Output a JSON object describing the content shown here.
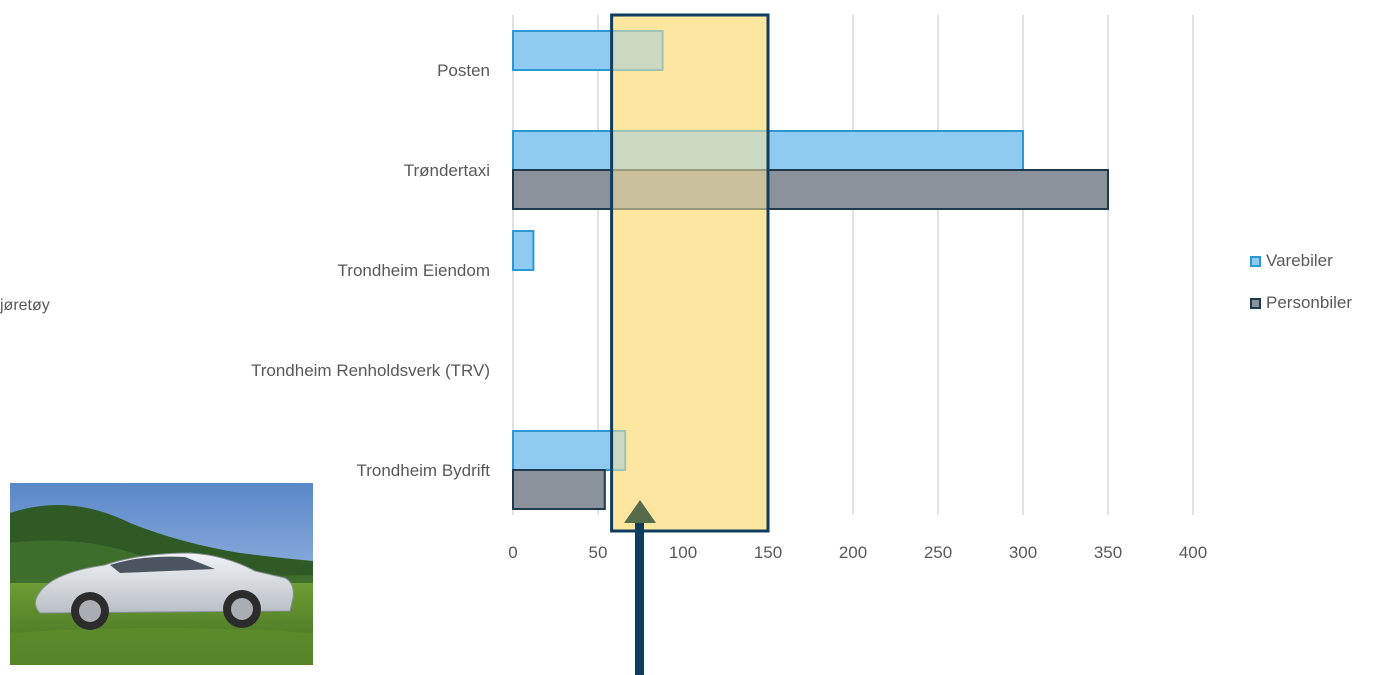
{
  "side_label": "jøretøy",
  "legend": {
    "items": [
      {
        "label": "Varebiler",
        "fill": "#8fcaf0",
        "stroke": "#2b97d3"
      },
      {
        "label": "Personbiler",
        "fill": "#8c929c",
        "stroke": "#1f3a4d"
      }
    ]
  },
  "chart_data": {
    "type": "bar",
    "orientation": "horizontal",
    "categories": [
      "Posten",
      "Trøndertaxi",
      "Trondheim Eiendom",
      "Trondheim Renholdsverk (TRV)",
      "Trondheim Bydrift"
    ],
    "series": [
      {
        "name": "Varebiler",
        "values": [
          88,
          300,
          12,
          0,
          66
        ],
        "color": "#8fcaf0",
        "stroke": "#2b97d3"
      },
      {
        "name": "Personbiler",
        "values": [
          0,
          350,
          0,
          0,
          54
        ],
        "color": "#8c929c",
        "stroke": "#1f3a4d"
      }
    ],
    "xlim": [
      0,
      400
    ],
    "xticks": [
      0,
      50,
      100,
      150,
      200,
      250,
      300,
      350,
      400
    ],
    "grid": true,
    "legend_position": "right",
    "highlight_range": [
      58,
      150
    ],
    "highlight_color": "#fde69f",
    "arrow_color": "#0e3d5e",
    "arrow_head_color": "#546c4c"
  }
}
